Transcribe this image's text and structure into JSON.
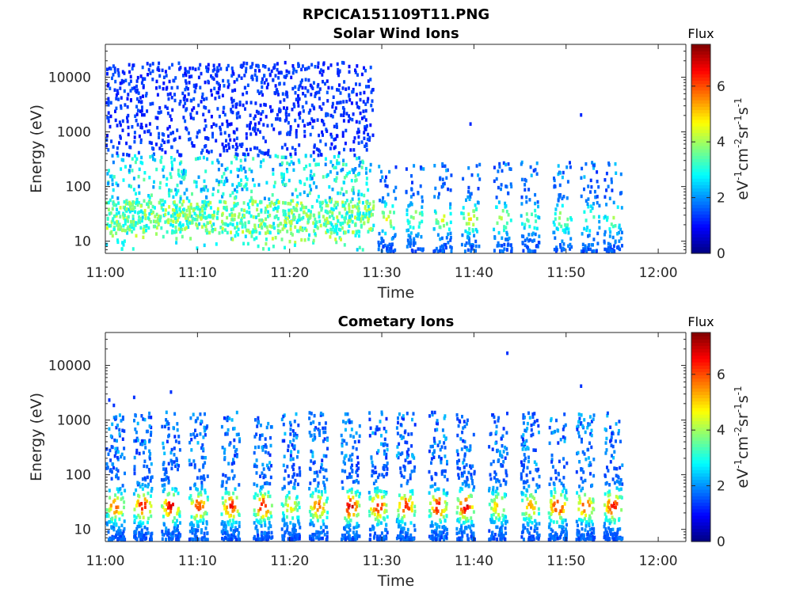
{
  "figure_title": "RPCICA151109T11.PNG",
  "colorbar": {
    "title": "Flux",
    "label_parts": [
      "eV",
      "-1",
      "cm",
      "-2",
      "sr",
      "-1",
      "s",
      "-1"
    ],
    "ticks": [
      0,
      2,
      4,
      6
    ],
    "range": [
      0,
      7.5
    ],
    "colormap": "jet"
  },
  "chart_data": [
    {
      "type": "heatmap",
      "title": "Solar Wind Ions",
      "xlabel": "Time",
      "ylabel": "Energy (eV)",
      "xlim": [
        "11:00",
        "12:03"
      ],
      "ylim": [
        6,
        40000
      ],
      "yscale": "log",
      "x_ticks": [
        "11:00",
        "11:10",
        "11:20",
        "11:30",
        "11:40",
        "11:50",
        "12:00"
      ],
      "y_ticks": [
        10,
        100,
        1000,
        10000
      ],
      "grid": false,
      "description_of_values": "Sparse counts up to ~20000 eV before 11:29; after 11:29 bursts confined to ~15-300 eV roughly every 3.5 minutes, flux mostly 2-5",
      "bursts": [
        {
          "time": "11:30.5",
          "flux": 4.5
        },
        {
          "time": "11:33.5",
          "flux": 4.2
        },
        {
          "time": "11:36.5",
          "flux": 4.6
        },
        {
          "time": "11:39.5",
          "flux": 4.8
        },
        {
          "time": "11:43",
          "flux": 4.4
        },
        {
          "time": "11:46",
          "flux": 3.8
        },
        {
          "time": "11:49.5",
          "flux": 4.2
        },
        {
          "time": "11:52.5",
          "flux": 3.6
        },
        {
          "time": "11:55",
          "flux": 4.0
        }
      ]
    },
    {
      "type": "heatmap",
      "title": "Cometary Ions",
      "xlabel": "Time",
      "ylabel": "Energy (eV)",
      "xlim": [
        "11:00",
        "12:03"
      ],
      "ylim": [
        6,
        40000
      ],
      "yscale": "log",
      "x_ticks": [
        "11:00",
        "11:10",
        "11:20",
        "11:30",
        "11:40",
        "11:50",
        "12:00"
      ],
      "y_ticks": [
        10,
        100,
        1000,
        10000
      ],
      "grid": false,
      "description_of_values": "Periodic bursts approx every 3 minutes, peak flux ~6-7 near 20-40 eV, tails up to ~1000 eV",
      "bursts": [
        {
          "time": "11:01",
          "flux": 6.0
        },
        {
          "time": "11:04",
          "flux": 6.6
        },
        {
          "time": "11:07",
          "flux": 6.8
        },
        {
          "time": "11:10",
          "flux": 6.2
        },
        {
          "time": "11:13.5",
          "flux": 6.4
        },
        {
          "time": "11:17",
          "flux": 6.6
        },
        {
          "time": "11:20",
          "flux": 4.8
        },
        {
          "time": "11:23",
          "flux": 6.0
        },
        {
          "time": "11:26.5",
          "flux": 7.0
        },
        {
          "time": "11:29.5",
          "flux": 6.6
        },
        {
          "time": "11:32.5",
          "flux": 6.5
        },
        {
          "time": "11:36",
          "flux": 6.6
        },
        {
          "time": "11:39",
          "flux": 6.8
        },
        {
          "time": "11:42.5",
          "flux": 5.2
        },
        {
          "time": "11:46",
          "flux": 5.4
        },
        {
          "time": "11:49",
          "flux": 6.6
        },
        {
          "time": "11:52",
          "flux": 6.3
        },
        {
          "time": "11:55",
          "flux": 6.7
        }
      ]
    }
  ]
}
